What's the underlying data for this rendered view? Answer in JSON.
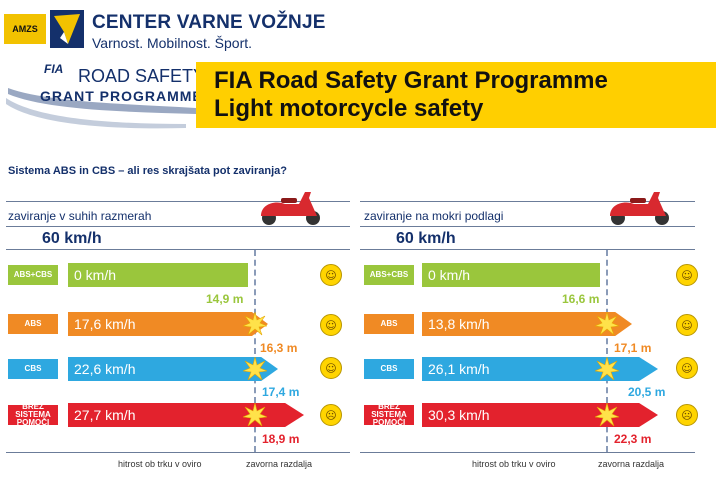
{
  "header": {
    "badge": "AMZS",
    "org_name": "CENTER VARNE VOŽNJE",
    "org_tagline": "Varnost. Mobilnost. Šport.",
    "fia_logo_text_1": "FIA",
    "fia_logo_text_2": "ROAD SAFETY",
    "fia_logo_text_3": "GRANT PROGRAMME",
    "title_line_1": "FIA Road Safety Grant Programme",
    "title_line_2": "Light motorcycle safety"
  },
  "question": "Sistema ABS in CBS – ali res skrajšata pot zaviranja?",
  "panels": [
    {
      "title": "zaviranje v suhih razmerah",
      "speed": "60 km/h",
      "rows": [
        {
          "label": "ABS+CBS",
          "impact_speed": "0 km/h",
          "distance": "14,9 m"
        },
        {
          "label": "ABS",
          "impact_speed": "17,6 km/h",
          "distance": "16,3 m"
        },
        {
          "label": "CBS",
          "impact_speed": "22,6 km/h",
          "distance": "17,4 m"
        },
        {
          "label": "BREZ SISTEMA POMOČI",
          "impact_speed": "27,7 km/h",
          "distance": "18,9 m"
        }
      ],
      "caption_speed": "hitrost ob trku v oviro",
      "caption_distance": "zavorna razdalja"
    },
    {
      "title": "zaviranje na mokri podlagi",
      "speed": "60 km/h",
      "rows": [
        {
          "label": "ABS+CBS",
          "impact_speed": "0 km/h",
          "distance": "16,6 m"
        },
        {
          "label": "ABS",
          "impact_speed": "13,8 km/h",
          "distance": "17,1 m"
        },
        {
          "label": "CBS",
          "impact_speed": "26,1 km/h",
          "distance": "20,5 m"
        },
        {
          "label": "BREZ SISTEMA POMOČI",
          "impact_speed": "30,3 km/h",
          "distance": "22,3 m"
        }
      ],
      "caption_speed": "hitrost ob trku v oviro",
      "caption_distance": "zavorna razdalja"
    }
  ],
  "colors": {
    "green": "#9ac63c",
    "orange": "#f08a24",
    "blue": "#2ea8e0",
    "red": "#e3222d",
    "navy": "#14306b",
    "yellow": "#ffcf00"
  },
  "icons": [
    "scooter-icon",
    "smiley-happy-icon",
    "smiley-neutral-icon",
    "smiley-worried-icon",
    "smiley-sad-icon",
    "impact-burst-icon"
  ]
}
